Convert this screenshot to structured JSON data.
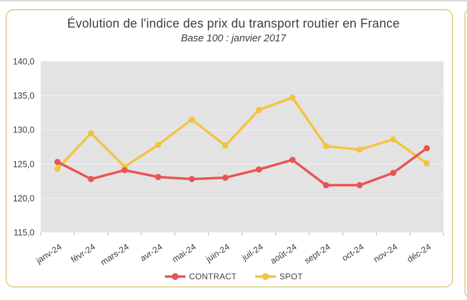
{
  "colors": {
    "card_border": "#e6d79f",
    "top_rule": "#d8d8d8",
    "plot_bg": "#e3e3e3",
    "grid": "#eeeeee",
    "tick": "#b9b9b9",
    "text": "#3d3d3d",
    "contract": "#ea5355",
    "spot": "#f4c33f"
  },
  "chart_data": {
    "type": "line",
    "title": "Évolution de l'indice des prix du transport routier en France",
    "subtitle": "Base 100 : janvier 2017",
    "categories": [
      "janv-24",
      "févr-24",
      "mars-24",
      "avr-24",
      "mai-24",
      "juin-24",
      "juil-24",
      "août-24",
      "sept-24",
      "oct-24",
      "nov-24",
      "déc-24"
    ],
    "series": [
      {
        "name": "CONTRACT",
        "color": "#ea5355",
        "values": [
          125.3,
          122.8,
          124.1,
          123.1,
          122.8,
          123.0,
          124.2,
          125.6,
          121.9,
          121.9,
          123.7,
          127.3
        ]
      },
      {
        "name": "SPOT",
        "color": "#f4c33f",
        "values": [
          124.3,
          129.5,
          124.6,
          127.8,
          131.5,
          127.7,
          132.9,
          134.7,
          127.6,
          127.1,
          128.6,
          125.1
        ]
      }
    ],
    "ylim": [
      115,
      140
    ],
    "ytick_step": 5,
    "ytick_decimal_separator": ",",
    "grid": "horizontal",
    "legend_position": "bottom",
    "plot_background": "#e3e3e3"
  }
}
